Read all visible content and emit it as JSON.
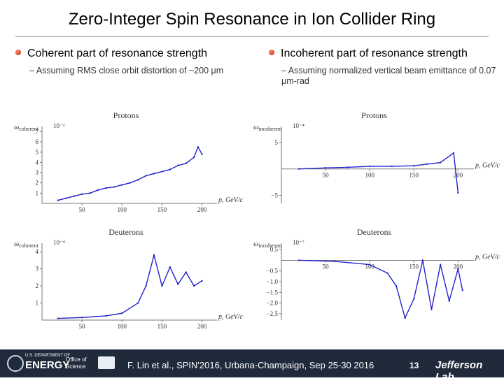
{
  "slide": {
    "title": "Zero-Integer Spin Resonance in Ion Collider Ring",
    "left_bullet": "Coherent part of resonance strength",
    "left_sub": "Assuming RMS close orbit distortion of ~200 μm",
    "right_bullet": "Incoherent part of resonance strength",
    "right_sub": "Assuming normalized vertical beam emittance of 0.07 μm-rad",
    "footer_citation": "F. Lin et al., SPIN'2016, Urbana-Champaign, Sep 25-30 2016",
    "page_number": "13",
    "logo_energy": "ENERGY",
    "logo_doe_small": "U.S. DEPARTMENT OF",
    "logo_office": "Office of Science",
    "logo_jlab": "Jefferson Lab"
  },
  "colors": {
    "series": "#2222cc",
    "footer_bg": "#1f2a3a",
    "bullet": "#c0281a"
  },
  "chart_data": [
    {
      "type": "line",
      "title": "Protons",
      "ylabel_sym": "ω",
      "ylabel_sub": "coherent",
      "scale": "10⁻²",
      "xlabel": "p, GeV/c",
      "xlim": [
        0,
        210
      ],
      "ylim": [
        0,
        7.5
      ],
      "xticks": [
        "50",
        "100",
        "150",
        "200"
      ],
      "yticks": [
        "1",
        "2",
        "3",
        "4",
        "5",
        "6",
        "7"
      ],
      "x": [
        20,
        30,
        40,
        50,
        60,
        70,
        80,
        90,
        100,
        110,
        120,
        130,
        140,
        150,
        160,
        170,
        180,
        190,
        195,
        200
      ],
      "y": [
        0.3,
        0.5,
        0.7,
        0.9,
        1.0,
        1.3,
        1.5,
        1.6,
        1.8,
        2.0,
        2.3,
        2.7,
        2.9,
        3.1,
        3.3,
        3.7,
        3.9,
        4.5,
        5.5,
        4.8
      ]
    },
    {
      "type": "line",
      "title": "Protons",
      "ylabel_sym": "ω",
      "ylabel_sub": "incoherent",
      "scale": "10⁻⁴",
      "xlabel": "p, GeV/c",
      "xlim": [
        0,
        210
      ],
      "ylim": [
        -6.5,
        8
      ],
      "xticks": [
        "50",
        "100",
        "150",
        "200"
      ],
      "yticks": [
        "5",
        "−5"
      ],
      "x": [
        20,
        50,
        75,
        100,
        125,
        150,
        165,
        180,
        195,
        200
      ],
      "y": [
        0,
        0.2,
        0.3,
        0.5,
        0.5,
        0.6,
        0.9,
        1.2,
        3.0,
        -4.5
      ]
    },
    {
      "type": "line",
      "title": "Deuterons",
      "ylabel_sym": "ω",
      "ylabel_sub": "coherent",
      "scale": "10⁻⁴",
      "xlabel": "p, GeV/c",
      "xlim": [
        0,
        210
      ],
      "ylim": [
        0,
        4.5
      ],
      "xticks": [
        "50",
        "100",
        "150",
        "200"
      ],
      "yticks": [
        "1",
        "2",
        "3",
        "4"
      ],
      "x": [
        20,
        50,
        80,
        100,
        120,
        130,
        140,
        150,
        160,
        170,
        180,
        190,
        200
      ],
      "y": [
        0.1,
        0.15,
        0.25,
        0.4,
        1.0,
        2.0,
        3.8,
        2.0,
        3.1,
        2.1,
        2.8,
        2.0,
        2.3
      ]
    },
    {
      "type": "line",
      "title": "Deuterons",
      "ylabel_sym": "ω",
      "ylabel_sub": "incoherent",
      "scale": "10⁻⁷",
      "xlabel": "p, GeV/c",
      "xlim": [
        0,
        210
      ],
      "ylim": [
        -2.8,
        0.8
      ],
      "xticks": [
        "50",
        "100",
        "150",
        "200"
      ],
      "yticks": [
        "0.5",
        "−0.5",
        "−1.0",
        "−1.5",
        "−2.0",
        "−2.5"
      ],
      "x": [
        20,
        60,
        100,
        120,
        130,
        140,
        150,
        160,
        170,
        180,
        190,
        200,
        205
      ],
      "y": [
        0,
        -0.05,
        -0.2,
        -0.6,
        -1.2,
        -2.7,
        -1.8,
        0.0,
        -2.3,
        -0.2,
        -1.9,
        -0.4,
        -1.4
      ]
    }
  ]
}
